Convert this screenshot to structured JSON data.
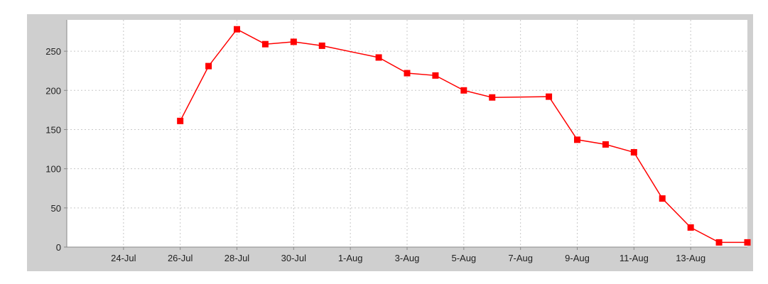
{
  "chart_data": {
    "type": "line",
    "title": "",
    "xlabel": "",
    "ylabel": "",
    "x_tick_labels": [
      "24-Jul",
      "26-Jul",
      "28-Jul",
      "30-Jul",
      "1-Aug",
      "3-Aug",
      "5-Aug",
      "7-Aug",
      "9-Aug",
      "11-Aug",
      "13-Aug"
    ],
    "y_tick_labels": [
      "0",
      "50",
      "100",
      "150",
      "200",
      "250"
    ],
    "y_ticks": [
      0,
      50,
      100,
      150,
      200,
      250
    ],
    "ylim": [
      0,
      290
    ],
    "xlim": [
      "2013-07-22",
      "2013-08-15"
    ],
    "grid": true,
    "series": [
      {
        "color": "#ff0000",
        "marker": "square",
        "points": [
          {
            "x": "2013-07-26",
            "y": 161
          },
          {
            "x": "2013-07-27",
            "y": 231
          },
          {
            "x": "2013-07-28",
            "y": 278
          },
          {
            "x": "2013-07-29",
            "y": 259
          },
          {
            "x": "2013-07-30",
            "y": 262
          },
          {
            "x": "2013-07-31",
            "y": 257
          },
          {
            "x": "2013-08-02",
            "y": 242
          },
          {
            "x": "2013-08-03",
            "y": 222
          },
          {
            "x": "2013-08-04",
            "y": 219
          },
          {
            "x": "2013-08-05",
            "y": 200
          },
          {
            "x": "2013-08-06",
            "y": 191
          },
          {
            "x": "2013-08-08",
            "y": 192
          },
          {
            "x": "2013-08-09",
            "y": 137
          },
          {
            "x": "2013-08-10",
            "y": 131
          },
          {
            "x": "2013-08-11",
            "y": 121
          },
          {
            "x": "2013-08-12",
            "y": 62
          },
          {
            "x": "2013-08-13",
            "y": 25
          },
          {
            "x": "2013-08-14",
            "y": 6
          },
          {
            "x": "2013-08-15",
            "y": 6
          }
        ]
      }
    ]
  }
}
